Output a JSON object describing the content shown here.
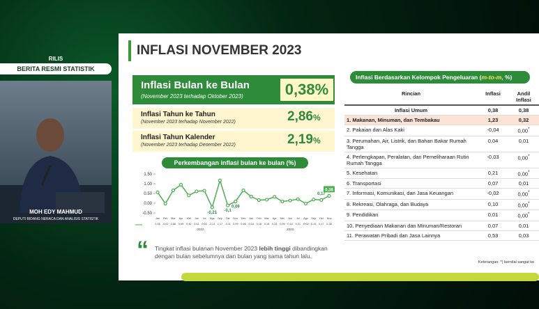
{
  "broadcast": {
    "tag": "RILIS",
    "program": "BERITA RESMI STATISTIK",
    "speaker": "MOH EDY MAHMUD",
    "role": "DEPUTI BIDANG NERACA DAN ANALISIS STATISTIK"
  },
  "slide": {
    "title": "INFLASI NOVEMBER 2023",
    "main_card": {
      "title": "Inflasi Bulan ke Bulan",
      "subtitle": "(November 2023 terhadap Oktober 2023)",
      "value": "0,38",
      "unit": "%"
    },
    "cards": [
      {
        "title": "Inflasi Tahun ke Tahun",
        "subtitle": "(November 2023 terhadap November 2022)",
        "value": "2,86",
        "unit": "%"
      },
      {
        "title": "Inflasi Tahun Kalender",
        "subtitle": "(November 2023 terhadap Desember 2022)",
        "value": "2,19",
        "unit": "%"
      }
    ],
    "trend_chart": {
      "type": "line",
      "title": "Perkembangan inflasi bulan ke bulan (%)",
      "categories": [
        "Jan",
        "Feb",
        "Mar",
        "Apr",
        "Mei",
        "Jun",
        "Jul",
        "Ags",
        "Sep",
        "Okt",
        "Nov",
        "Des",
        "Jan",
        "Feb",
        "Mar",
        "Apr",
        "Mei",
        "Jun",
        "Jul",
        "Ags",
        "Sep",
        "Okt",
        "Nov"
      ],
      "years": [
        "2022",
        "2023"
      ],
      "values": [
        0.56,
        -0.02,
        0.66,
        0.95,
        0.4,
        0.61,
        0.64,
        -0.21,
        1.17,
        -0.11,
        0.09,
        0.66,
        0.34,
        0.16,
        0.18,
        0.33,
        0.09,
        0.14,
        0.21,
        -0.02,
        0.19,
        0.17,
        0.38
      ],
      "value_labels": [
        "0,56",
        "-0,02",
        "0,66",
        "0,95",
        "0,40",
        "0,61",
        "0,64",
        "-0,21",
        "1,17",
        "-0,11",
        "0,09",
        "0,66",
        "0,34",
        "0,16",
        "0,18",
        "0,33",
        "0,09",
        "0,14",
        "0,21",
        "-0,02",
        "0,19",
        "0,17",
        "0,38"
      ],
      "point_labels": [
        null,
        null,
        null,
        null,
        null,
        null,
        null,
        "-0,21",
        null,
        "-0,1",
        "0,09",
        null,
        null,
        null,
        null,
        null,
        null,
        null,
        null,
        null,
        null,
        "0,17",
        "0,38"
      ],
      "ylim": [
        -0.5,
        1.5
      ],
      "yticks": [
        {
          "value": 1.5,
          "label": "1.50"
        },
        {
          "value": 1,
          "label": "1.00"
        },
        {
          "value": 0.5,
          "label": "0.50"
        },
        {
          "value": 0,
          "label": "0.00"
        },
        {
          "value": -0.5,
          "label": "-0.50"
        }
      ],
      "color": "#4caf50"
    },
    "quote": {
      "before": "Tingkat inflasi bulanan November 2023 ",
      "bold": "lebih tinggi",
      "after": " dibandingkan dengan bulan sebelumnya dan bulan yang sama tahun lalu."
    },
    "table": {
      "title": "Inflasi Berdasarkan Kelompok Pengeluaran (",
      "title_em": "m-to-m",
      "title_end": ", %)",
      "header": [
        "Rincian",
        "Inflasi",
        "Andil Inflasi"
      ],
      "rows": [
        [
          "Inflasi Umum",
          "0,38",
          "0,38",
          null
        ],
        [
          "1. Makanan, Minuman, dan Tembakau",
          "1,23",
          "0,32",
          null
        ],
        [
          "2. Pakaian dan Alas Kaki",
          "-0,04",
          "0,00",
          "*"
        ],
        [
          "3. Perumahan, Air, Listrik, dan Bahan Bakar Rumah Tangga",
          "0,04",
          "0,01",
          null
        ],
        [
          "4. Perlengkapan, Peralatan, dan Pemeliharaan Rutin Rumah Tangga",
          "-0,03",
          "0,00",
          "*"
        ],
        [
          "5. Kesehatan",
          "0,21",
          "0,00",
          "*"
        ],
        [
          "6. Transportasi",
          "0,07",
          "0,01",
          null
        ],
        [
          "7. Informasi, Komunikasi, dan Jasa Keuangan",
          "-0,02",
          "0,00",
          "*"
        ],
        [
          "8. Rekreasi, Olahraga, dan Budaya",
          "0,10",
          "0,00",
          "*"
        ],
        [
          "9. Pendidikan",
          "0,01",
          "0,00",
          "*"
        ],
        [
          "10. Penyediaan Makanan dan Minuman/Restoran",
          "0,07",
          "0,01",
          null
        ],
        [
          "11. Perawatan Pribadi dan Jasa Lainnya",
          "0,53",
          "0,03",
          null
        ]
      ],
      "note": "Keterangan: *) bernilai sangat ke"
    }
  }
}
